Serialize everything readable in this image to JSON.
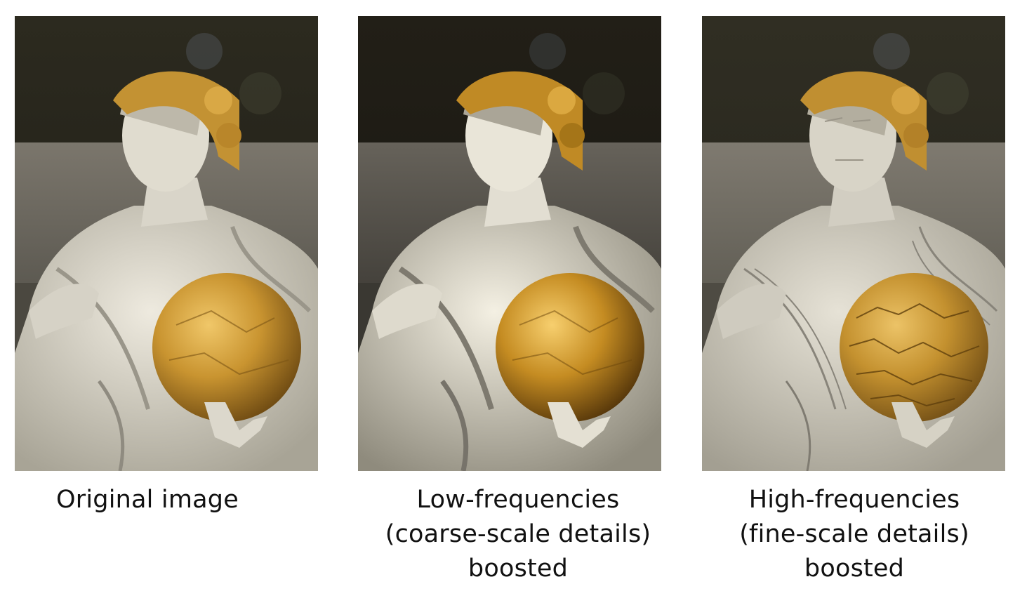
{
  "figure": {
    "panels": [
      {
        "caption_lines": [
          "Original image"
        ],
        "image_subject": "statue-performer-with-golden-sphere",
        "filter": "original"
      },
      {
        "caption_lines": [
          "Low-frequencies",
          "(coarse-scale details)",
          "boosted"
        ],
        "image_subject": "statue-performer-with-golden-sphere",
        "filter": "low-frequency-boost"
      },
      {
        "caption_lines": [
          "High-frequencies",
          "(fine-scale details)",
          "boosted"
        ],
        "image_subject": "statue-performer-with-golden-sphere",
        "filter": "high-frequency-boost"
      }
    ],
    "colors": {
      "background_foliage": "#2a2a20",
      "stone_wall": "#6f6a60",
      "robe": "#d8d4c6",
      "gold": "#c9952f",
      "page_background": "#ffffff"
    }
  }
}
